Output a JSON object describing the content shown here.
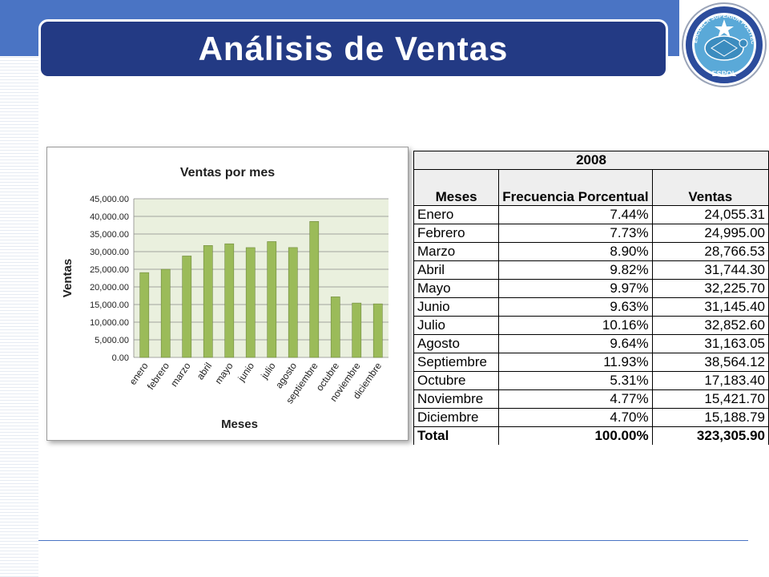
{
  "title": "Análisis de Ventas",
  "logo": {
    "icon": "espol-seal-icon",
    "ring_text": "ESCUELA SUPERIOR POLITECNICA DEL LITORAL",
    "bottom_text": "ESPOL"
  },
  "colors": {
    "title_bg": "#233a84",
    "band": "#4a74c4",
    "bar": "#9bbb59",
    "bar_edge": "#71893f",
    "plot_bg": "#eaf0de"
  },
  "table": {
    "year": "2008",
    "headers": [
      "Meses",
      "Frecuencia Porcentual",
      "Ventas"
    ],
    "rows": [
      [
        "Enero",
        "7.44%",
        "24,055.31"
      ],
      [
        "Febrero",
        "7.73%",
        "24,995.00"
      ],
      [
        "Marzo",
        "8.90%",
        "28,766.53"
      ],
      [
        "Abril",
        "9.82%",
        "31,744.30"
      ],
      [
        "Mayo",
        "9.97%",
        "32,225.70"
      ],
      [
        "Junio",
        "9.63%",
        "31,145.40"
      ],
      [
        "Julio",
        "10.16%",
        "32,852.60"
      ],
      [
        "Agosto",
        "9.64%",
        "31,163.05"
      ],
      [
        "Septiembre",
        "11.93%",
        "38,564.12"
      ],
      [
        "Octubre",
        "5.31%",
        "17,183.40"
      ],
      [
        "Noviembre",
        "4.77%",
        "15,421.70"
      ],
      [
        "Diciembre",
        "4.70%",
        "15,188.79"
      ]
    ],
    "total": [
      "Total",
      "100.00%",
      "323,305.90"
    ]
  },
  "chart_data": {
    "type": "bar",
    "title": "Ventas por mes",
    "xlabel": "Meses",
    "ylabel": "Ventas",
    "categories": [
      "enero",
      "febrero",
      "marzo",
      "abril",
      "mayo",
      "junio",
      "julio",
      "agosto",
      "septiembre",
      "octubre",
      "noviembre",
      "diciembre"
    ],
    "values": [
      24055.31,
      24995.0,
      28766.53,
      31744.3,
      32225.7,
      31145.4,
      32852.6,
      31163.05,
      38564.12,
      17183.4,
      15421.7,
      15188.79
    ],
    "ylim": [
      0,
      45000
    ],
    "yticks": [
      "0.00",
      "5,000.00",
      "10,000.00",
      "15,000.00",
      "20,000.00",
      "25,000.00",
      "30,000.00",
      "35,000.00",
      "40,000.00",
      "45,000.00"
    ],
    "grid": true,
    "legend": "none"
  }
}
